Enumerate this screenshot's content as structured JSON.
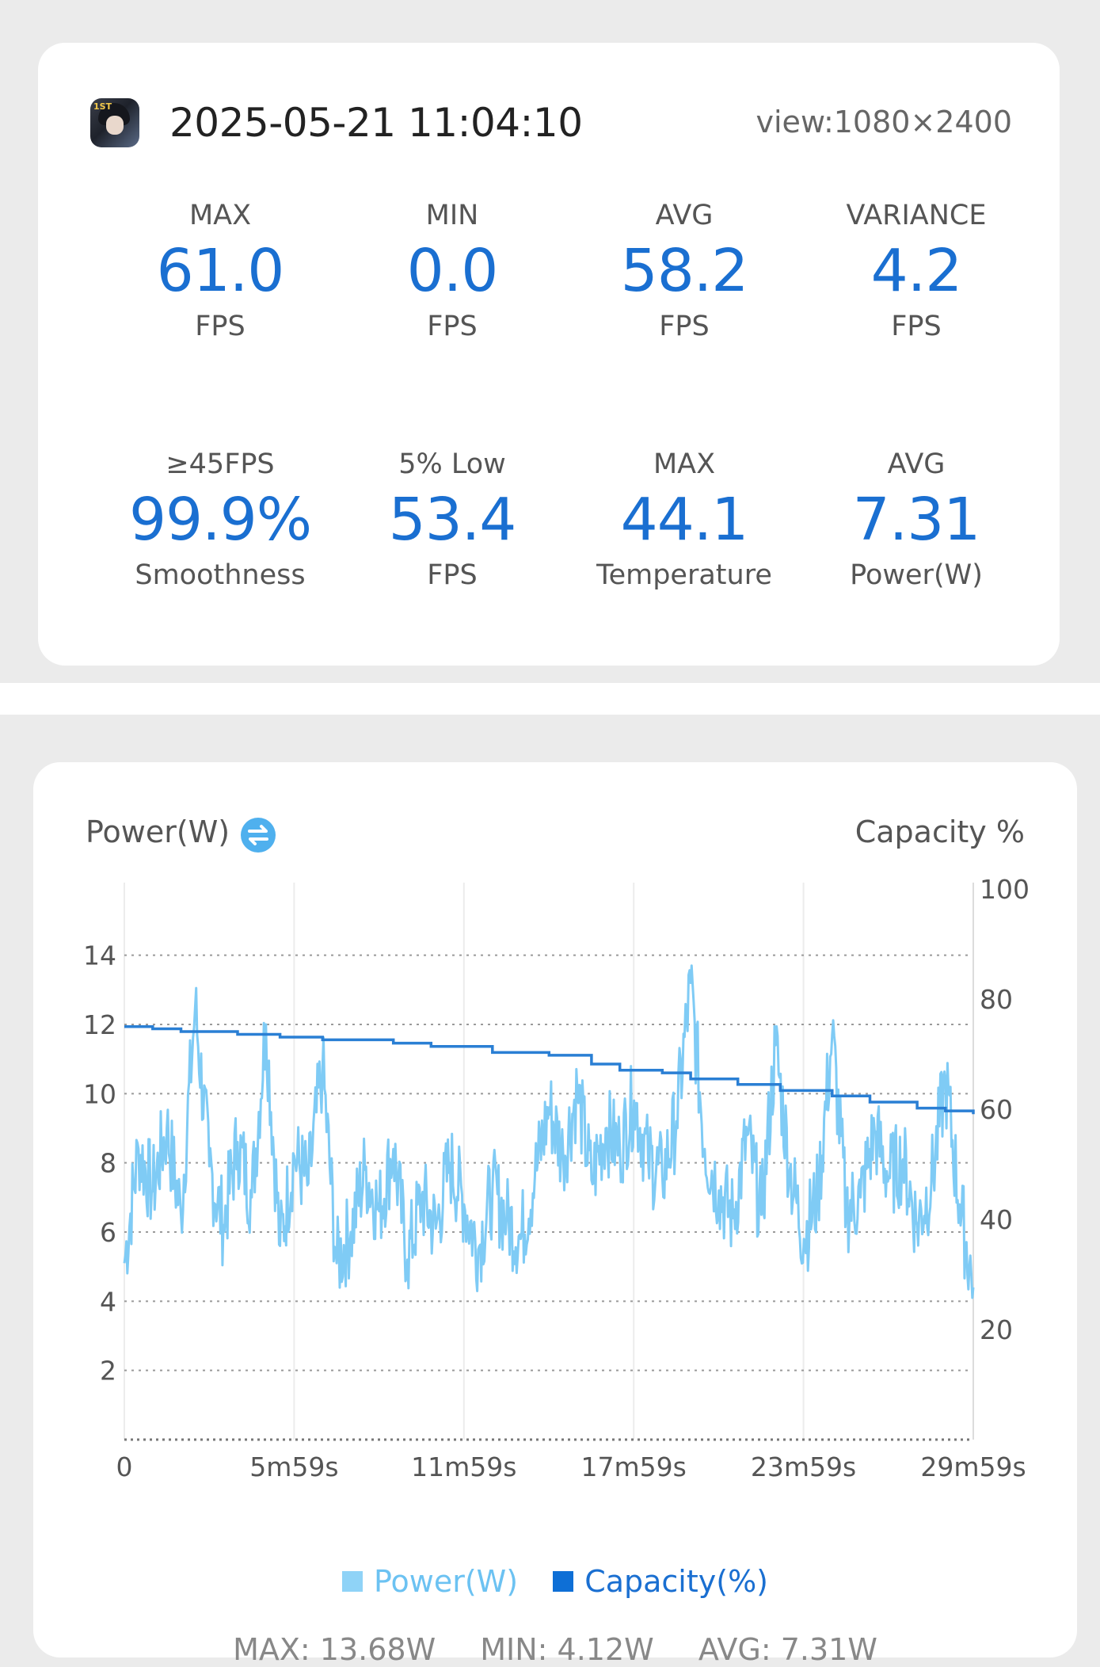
{
  "header": {
    "date_time": "2025-05-21 11:04:10",
    "view": "view:1080×2400"
  },
  "stats": [
    {
      "label": "MAX",
      "value": "61.0",
      "unit": "FPS"
    },
    {
      "label": "MIN",
      "value": "0.0",
      "unit": "FPS"
    },
    {
      "label": "AVG",
      "value": "58.2",
      "unit": "FPS"
    },
    {
      "label": "VARIANCE",
      "value": "4.2",
      "unit": "FPS"
    },
    {
      "label": "≥45FPS",
      "value": "99.9%",
      "unit": "Smoothness"
    },
    {
      "label": "5% Low",
      "value": "53.4",
      "unit": "FPS"
    },
    {
      "label": "MAX",
      "value": "44.1",
      "unit": "Temperature"
    },
    {
      "label": "AVG",
      "value": "7.31",
      "unit": "Power(W)"
    }
  ],
  "chart": {
    "title_left": "Power(W)",
    "title_right": "Capacity %",
    "legend_power": "Power(W)",
    "legend_capacity": "Capacity(%)",
    "summary_max": "MAX: 13.68W",
    "summary_min": "MIN: 4.12W",
    "summary_avg": "AVG: 7.31W"
  },
  "colors": {
    "accent": "#1a6fd1",
    "power": "#7fcbf5",
    "capacity": "#2a7fd4"
  },
  "chart_data": {
    "type": "line",
    "x_range_seconds": [
      0,
      1799
    ],
    "x_ticks": [
      "0",
      "5m59s",
      "11m59s",
      "17m59s",
      "23m59s",
      "29m59s"
    ],
    "y_left_ticks": [
      "2",
      "4",
      "6",
      "8",
      "10",
      "12",
      "14"
    ],
    "y_left_range": [
      0,
      15
    ],
    "y_right_ticks": [
      "20",
      "40",
      "60",
      "80",
      "100"
    ],
    "y_right_range": [
      0,
      100
    ],
    "legend_position": "bottom",
    "series": [
      {
        "name": "Power(W)",
        "axis": "left",
        "x_seconds": [
          0,
          30,
          60,
          90,
          120,
          150,
          180,
          210,
          240,
          270,
          300,
          330,
          360,
          390,
          420,
          450,
          480,
          510,
          540,
          570,
          600,
          630,
          660,
          690,
          720,
          750,
          780,
          810,
          840,
          870,
          900,
          930,
          960,
          990,
          1020,
          1050,
          1080,
          1110,
          1140,
          1170,
          1200,
          1230,
          1260,
          1290,
          1320,
          1350,
          1380,
          1410,
          1440,
          1470,
          1500,
          1530,
          1560,
          1590,
          1620,
          1650,
          1680,
          1710,
          1740,
          1770,
          1799
        ],
        "values": [
          5.1,
          8.4,
          7.2,
          9.0,
          6.5,
          12.5,
          7.9,
          6.2,
          8.6,
          7.0,
          12.0,
          5.6,
          8.2,
          7.4,
          10.8,
          5.1,
          6.0,
          7.8,
          6.6,
          8.4,
          5.2,
          7.0,
          6.1,
          8.0,
          6.8,
          5.5,
          7.2,
          6.4,
          5.8,
          7.6,
          9.6,
          8.2,
          10.1,
          7.5,
          9.0,
          8.4,
          9.8,
          8.1,
          7.6,
          9.2,
          13.2,
          8.4,
          7.2,
          6.4,
          8.8,
          6.5,
          11.4,
          7.8,
          5.8,
          7.1,
          11.7,
          6.6,
          7.0,
          8.9,
          7.6,
          8.1,
          6.2,
          7.4,
          10.4,
          6.8,
          4.4
        ]
      },
      {
        "name": "Capacity(%)",
        "axis": "right",
        "x_seconds": [
          0,
          60,
          120,
          240,
          330,
          420,
          570,
          650,
          780,
          900,
          990,
          1050,
          1140,
          1200,
          1300,
          1390,
          1500,
          1580,
          1680,
          1740,
          1799
        ],
        "values": [
          75,
          74.6,
          74.1,
          73.6,
          73.1,
          72.6,
          72.0,
          71.4,
          70.3,
          69.8,
          68.2,
          67.1,
          66.6,
          65.5,
          64.5,
          63.4,
          62.4,
          61.3,
          60.2,
          59.7,
          59.1
        ]
      }
    ]
  }
}
